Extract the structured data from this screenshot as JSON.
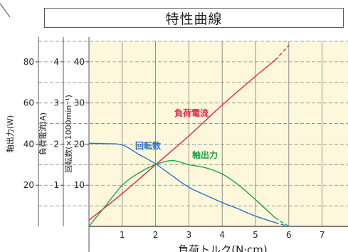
{
  "chart_data": {
    "type": "line",
    "title": "特性曲線",
    "xlabel": "負荷トルク(N·cm)",
    "xlim": [
      0,
      7.5
    ],
    "x_ticks": [
      "1",
      "2",
      "3",
      "4",
      "5",
      "6",
      "7"
    ],
    "grid": true,
    "axes": [
      {
        "label": "軸出力(W)",
        "ylim": [
          0,
          90
        ],
        "ticks": [
          "20",
          "40",
          "60",
          "80"
        ]
      },
      {
        "label": "負荷電流(A)",
        "ylim": [
          0,
          4.5
        ],
        "ticks": [
          "1",
          "2",
          "3",
          "4"
        ]
      },
      {
        "label": "回転数(×1000min⁻¹)",
        "ylim": [
          0,
          45
        ],
        "ticks": [
          "10",
          "20",
          "30",
          "40"
        ]
      }
    ],
    "series": [
      {
        "name": "負荷電流",
        "axis": "負荷電流(A)",
        "color": "#e8264f",
        "x": [
          0,
          1,
          2,
          3,
          4,
          5,
          5.6,
          6
        ],
        "y": [
          0.15,
          0.8,
          1.5,
          2.2,
          2.95,
          3.65,
          4.05,
          4.4
        ],
        "dashed_from_x": 5.6
      },
      {
        "name": "回転数",
        "axis": "回転数(×1000min⁻¹)",
        "color": "#2d73c4",
        "x": [
          0,
          0.5,
          1,
          1.5,
          2,
          2.5,
          3,
          3.5,
          4,
          4.5,
          5,
          5.6,
          6
        ],
        "y": [
          20.2,
          20.1,
          19.8,
          17.5,
          15.2,
          12.3,
          9.5,
          7.6,
          5.8,
          4.2,
          2.5,
          0.9,
          0
        ],
        "dashed_from_x": 5.6
      },
      {
        "name": "軸出力",
        "axis": "軸出力(W)",
        "color": "#1fa24a",
        "x": [
          0,
          0.5,
          1,
          1.5,
          2,
          2.5,
          3,
          3.5,
          4,
          4.5,
          5,
          5.6,
          6
        ],
        "y": [
          0,
          10,
          20,
          26,
          30,
          32,
          30,
          28.5,
          25.5,
          20,
          13,
          4,
          0
        ],
        "dashed_from_x": 5.6
      }
    ],
    "annotations": [
      {
        "text": "負荷電流",
        "color": "#e8264f"
      },
      {
        "text": "回転数",
        "color": "#2d73c4"
      },
      {
        "text": "軸出力",
        "color": "#1fa24a"
      }
    ]
  }
}
